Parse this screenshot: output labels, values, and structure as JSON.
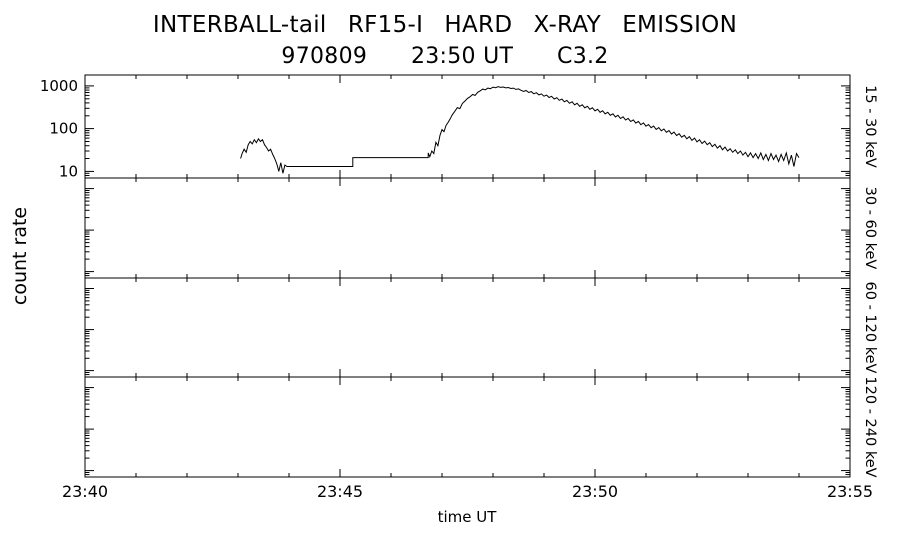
{
  "header": {
    "line1": "INTERBALL-tail  RF15-I  HARD  X-RAY  EMISSION",
    "line2": "970809      23:50 UT      C3.2"
  },
  "axis_titles": {
    "y": "count rate",
    "x": "time UT"
  },
  "colors": {
    "frame": "#000000",
    "line": "#000000",
    "background": "#ffffff"
  },
  "chart_data": {
    "type": "line",
    "title": "INTERBALL-tail RF15-I HARD X-RAY EMISSION",
    "subtitle": "970809 23:50 UT C3.2",
    "xlabel": "time UT",
    "ylabel": "count rate",
    "grid": false,
    "x_axis": {
      "start": "23:40",
      "end": "23:55",
      "unit": "UT",
      "minutes_span": 15,
      "major_ticks": [
        {
          "t": 0,
          "label": "23:40"
        },
        {
          "t": 5,
          "label": "23:45"
        },
        {
          "t": 10,
          "label": "23:50"
        },
        {
          "t": 15,
          "label": "23:55"
        }
      ],
      "minor_step_min": 1
    },
    "panels": [
      {
        "label": "15 - 30 keV",
        "scale": "log",
        "ylim": [
          7,
          1800
        ],
        "y_ticks": [
          {
            "v": 10,
            "label": "10"
          },
          {
            "v": 100,
            "label": "100"
          },
          {
            "v": 1000,
            "label": "1000"
          }
        ],
        "show_y_labels": true,
        "series": [
          {
            "name": "15-30 keV count rate",
            "color": "#000000",
            "points": [
              [
                3.05,
                20
              ],
              [
                3.08,
                26
              ],
              [
                3.12,
                33
              ],
              [
                3.16,
                28
              ],
              [
                3.2,
                42
              ],
              [
                3.24,
                50
              ],
              [
                3.28,
                44
              ],
              [
                3.32,
                55
              ],
              [
                3.36,
                47
              ],
              [
                3.4,
                58
              ],
              [
                3.44,
                50
              ],
              [
                3.48,
                55
              ],
              [
                3.52,
                42
              ],
              [
                3.56,
                36
              ],
              [
                3.6,
                30
              ],
              [
                3.64,
                33
              ],
              [
                3.68,
                25
              ],
              [
                3.72,
                20
              ],
              [
                3.76,
                15
              ],
              [
                3.8,
                10
              ],
              [
                3.84,
                16
              ],
              [
                3.88,
                9
              ],
              [
                3.92,
                14
              ],
              [
                3.96,
                13
              ],
              [
                4.0,
                13
              ],
              [
                5.25,
                13
              ],
              [
                5.25,
                21
              ],
              [
                6.73,
                21
              ],
              [
                6.73,
                27
              ],
              [
                6.76,
                22
              ],
              [
                6.8,
                30
              ],
              [
                6.84,
                26
              ],
              [
                6.88,
                48
              ],
              [
                6.92,
                40
              ],
              [
                6.96,
                70
              ],
              [
                7.0,
                95
              ],
              [
                7.04,
                85
              ],
              [
                7.08,
                120
              ],
              [
                7.12,
                140
              ],
              [
                7.16,
                170
              ],
              [
                7.2,
                210
              ],
              [
                7.25,
                255
              ],
              [
                7.3,
                310
              ],
              [
                7.35,
                295
              ],
              [
                7.4,
                390
              ],
              [
                7.45,
                440
              ],
              [
                7.5,
                510
              ],
              [
                7.55,
                560
              ],
              [
                7.6,
                630
              ],
              [
                7.65,
                600
              ],
              [
                7.7,
                710
              ],
              [
                7.75,
                770
              ],
              [
                7.8,
                840
              ],
              [
                7.85,
                810
              ],
              [
                7.9,
                890
              ],
              [
                7.95,
                860
              ],
              [
                8.0,
                940
              ],
              [
                8.05,
                910
              ],
              [
                8.1,
                960
              ],
              [
                8.15,
                925
              ],
              [
                8.2,
                945
              ],
              [
                8.25,
                900
              ],
              [
                8.3,
                920
              ],
              [
                8.35,
                870
              ],
              [
                8.4,
                890
              ],
              [
                8.45,
                830
              ],
              [
                8.5,
                850
              ],
              [
                8.55,
                790
              ],
              [
                8.6,
                740
              ],
              [
                8.65,
                780
              ],
              [
                8.7,
                700
              ],
              [
                8.75,
                735
              ],
              [
                8.8,
                655
              ],
              [
                8.85,
                695
              ],
              [
                8.9,
                615
              ],
              [
                8.95,
                650
              ],
              [
                9.0,
                575
              ],
              [
                9.05,
                610
              ],
              [
                9.1,
                535
              ],
              [
                9.15,
                570
              ],
              [
                9.2,
                495
              ],
              [
                9.25,
                530
              ],
              [
                9.3,
                460
              ],
              [
                9.35,
                492
              ],
              [
                9.4,
                425
              ],
              [
                9.45,
                458
              ],
              [
                9.5,
                392
              ],
              [
                9.55,
                424
              ],
              [
                9.6,
                362
              ],
              [
                9.65,
                392
              ],
              [
                9.7,
                334
              ],
              [
                9.75,
                362
              ],
              [
                9.8,
                308
              ],
              [
                9.85,
                334
              ],
              [
                9.9,
                284
              ],
              [
                9.95,
                308
              ],
              [
                10.0,
                262
              ],
              [
                10.05,
                284
              ],
              [
                10.1,
                241
              ],
              [
                10.15,
                262
              ],
              [
                10.2,
                222
              ],
              [
                10.25,
                241
              ],
              [
                10.3,
                205
              ],
              [
                10.35,
                222
              ],
              [
                10.4,
                188
              ],
              [
                10.45,
                205
              ],
              [
                10.5,
                173
              ],
              [
                10.55,
                189
              ],
              [
                10.6,
                159
              ],
              [
                10.65,
                174
              ],
              [
                10.7,
                147
              ],
              [
                10.75,
                160
              ],
              [
                10.8,
                135
              ],
              [
                10.85,
                148
              ],
              [
                10.9,
                124
              ],
              [
                10.95,
                136
              ],
              [
                11.0,
                114
              ],
              [
                11.05,
                125
              ],
              [
                11.1,
                105
              ],
              [
                11.15,
                115
              ],
              [
                11.2,
                96
              ],
              [
                11.25,
                106
              ],
              [
                11.3,
                89
              ],
              [
                11.35,
                98
              ],
              [
                11.4,
                82
              ],
              [
                11.45,
                90
              ],
              [
                11.5,
                75
              ],
              [
                11.55,
                83
              ],
              [
                11.6,
                69
              ],
              [
                11.65,
                76
              ],
              [
                11.7,
                63
              ],
              [
                11.75,
                70
              ],
              [
                11.8,
                58
              ],
              [
                11.85,
                65
              ],
              [
                11.9,
                53
              ],
              [
                11.95,
                60
              ],
              [
                12.0,
                49
              ],
              [
                12.05,
                55
              ],
              [
                12.1,
                45
              ],
              [
                12.15,
                51
              ],
              [
                12.2,
                42
              ],
              [
                12.25,
                47
              ],
              [
                12.3,
                38
              ],
              [
                12.35,
                43
              ],
              [
                12.4,
                35
              ],
              [
                12.45,
                40
              ],
              [
                12.5,
                32
              ],
              [
                12.55,
                37
              ],
              [
                12.6,
                30
              ],
              [
                12.65,
                34
              ],
              [
                12.7,
                28
              ],
              [
                12.75,
                32
              ],
              [
                12.8,
                26
              ],
              [
                12.85,
                30
              ],
              [
                12.9,
                24
              ],
              [
                12.95,
                28
              ],
              [
                13.0,
                22
              ],
              [
                13.05,
                27
              ],
              [
                13.1,
                21
              ],
              [
                13.15,
                26
              ],
              [
                13.2,
                20
              ],
              [
                13.25,
                27
              ],
              [
                13.3,
                19
              ],
              [
                13.35,
                25
              ],
              [
                13.4,
                18
              ],
              [
                13.45,
                26
              ],
              [
                13.5,
                19
              ],
              [
                13.55,
                24
              ],
              [
                13.6,
                17
              ],
              [
                13.65,
                25
              ],
              [
                13.7,
                18
              ],
              [
                13.75,
                27
              ],
              [
                13.8,
                15
              ],
              [
                13.85,
                24
              ],
              [
                13.9,
                13
              ],
              [
                13.95,
                26
              ],
              [
                14.0,
                21
              ]
            ]
          }
        ]
      },
      {
        "label": "30 - 60 keV",
        "scale": "log",
        "ylim": [
          7,
          1800
        ],
        "y_ticks": [
          {
            "v": 10,
            "label": "10"
          },
          {
            "v": 100,
            "label": "100"
          },
          {
            "v": 1000,
            "label": "1000"
          }
        ],
        "show_y_labels": false,
        "series": []
      },
      {
        "label": "60 - 120 keV",
        "scale": "log",
        "ylim": [
          7,
          1800
        ],
        "y_ticks": [
          {
            "v": 10,
            "label": "10"
          },
          {
            "v": 100,
            "label": "100"
          },
          {
            "v": 1000,
            "label": "1000"
          }
        ],
        "show_y_labels": false,
        "series": []
      },
      {
        "label": "120 - 240 keV",
        "scale": "log",
        "ylim": [
          7,
          1800
        ],
        "y_ticks": [
          {
            "v": 10,
            "label": "10"
          },
          {
            "v": 100,
            "label": "100"
          },
          {
            "v": 1000,
            "label": "1000"
          }
        ],
        "show_y_labels": false,
        "series": []
      }
    ]
  }
}
